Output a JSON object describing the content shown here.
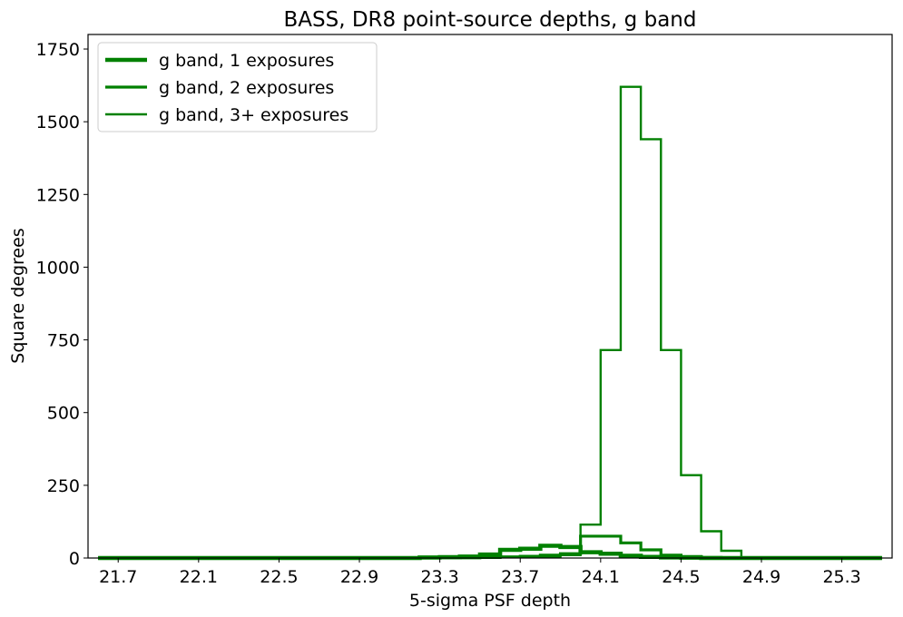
{
  "chart_data": {
    "type": "histogram-step",
    "title": "BASS, DR8 point-source depths, g band",
    "xlabel": "5-sigma PSF depth",
    "ylabel": "Square degrees",
    "xlim": [
      21.55,
      25.55
    ],
    "ylim": [
      0,
      1800
    ],
    "xticks": [
      21.7,
      22.1,
      22.5,
      22.9,
      23.3,
      23.7,
      24.1,
      24.5,
      24.9,
      25.3
    ],
    "xtick_labels": [
      "21.7",
      "22.1",
      "22.5",
      "22.9",
      "23.3",
      "23.7",
      "24.1",
      "24.5",
      "24.9",
      "25.3"
    ],
    "yticks": [
      0,
      250,
      500,
      750,
      1000,
      1250,
      1500,
      1750
    ],
    "ytick_labels": [
      "0",
      "250",
      "500",
      "750",
      "1000",
      "1250",
      "1500",
      "1750"
    ],
    "grid": false,
    "legend_position": "top-left",
    "color": "#008000",
    "bin_edges": [
      21.6,
      21.7,
      21.8,
      21.9,
      22.0,
      22.1,
      22.2,
      22.3,
      22.4,
      22.5,
      22.6,
      22.7,
      22.8,
      22.9,
      23.0,
      23.1,
      23.2,
      23.3,
      23.4,
      23.5,
      23.6,
      23.7,
      23.8,
      23.9,
      24.0,
      24.1,
      24.2,
      24.3,
      24.4,
      24.5,
      24.6,
      24.7,
      24.8,
      24.9,
      25.0,
      25.1,
      25.2,
      25.3,
      25.4,
      25.5
    ],
    "series": [
      {
        "name": "g band, 1 exposures",
        "line_width": 4.5,
        "values": [
          0,
          0,
          0,
          0,
          0,
          0,
          0,
          0,
          0,
          0,
          0,
          0,
          0,
          0,
          0,
          0,
          2,
          3,
          5,
          12,
          28,
          32,
          42,
          38,
          20,
          15,
          8,
          4,
          2,
          1,
          0,
          0,
          0,
          0,
          0,
          0,
          0,
          0,
          0
        ]
      },
      {
        "name": "g band, 2 exposures",
        "line_width": 3.2,
        "values": [
          0,
          0,
          0,
          0,
          0,
          0,
          0,
          0,
          0,
          0,
          0,
          0,
          0,
          0,
          0,
          0,
          0,
          1,
          1,
          2,
          4,
          6,
          10,
          15,
          75,
          75,
          52,
          28,
          10,
          5,
          2,
          1,
          0,
          0,
          0,
          0,
          0,
          0,
          0
        ]
      },
      {
        "name": "g band, 3+ exposures",
        "line_width": 2.4,
        "values": [
          0,
          0,
          0,
          0,
          0,
          0,
          0,
          0,
          0,
          0,
          0,
          0,
          0,
          0,
          0,
          0,
          0,
          0,
          0,
          1,
          2,
          3,
          5,
          10,
          115,
          715,
          1620,
          1440,
          715,
          285,
          92,
          25,
          2,
          1,
          0,
          0,
          0,
          0,
          0
        ]
      }
    ]
  }
}
